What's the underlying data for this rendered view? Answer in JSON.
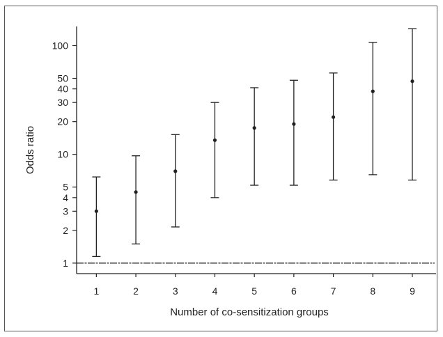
{
  "chart_data": {
    "type": "scatter",
    "xlabel": "Number of co-sensitization groups",
    "ylabel": "Odds ratio",
    "y_scale": "log",
    "ylim": [
      0.8,
      150
    ],
    "xlim": [
      0.5,
      9.6
    ],
    "x_ticks": [
      "1",
      "2",
      "3",
      "4",
      "5",
      "6",
      "7",
      "8",
      "9"
    ],
    "y_ticks": [
      {
        "value": 1,
        "label": "1"
      },
      {
        "value": 2,
        "label": "2"
      },
      {
        "value": 3,
        "label": "3"
      },
      {
        "value": 4,
        "label": "4"
      },
      {
        "value": 5,
        "label": "5"
      },
      {
        "value": 10,
        "label": "10"
      },
      {
        "value": 20,
        "label": "20"
      },
      {
        "value": 30,
        "label": "30"
      },
      {
        "value": 40,
        "label": "40"
      },
      {
        "value": 50,
        "label": "50"
      },
      {
        "value": 100,
        "label": "100"
      }
    ],
    "reference_line": 1,
    "grid": false,
    "points": [
      {
        "x": 1,
        "or": 3.0,
        "lower": 1.15,
        "upper": 6.2
      },
      {
        "x": 2,
        "or": 4.5,
        "lower": 1.5,
        "upper": 9.7
      },
      {
        "x": 3,
        "or": 7.0,
        "lower": 2.15,
        "upper": 15.2
      },
      {
        "x": 4,
        "or": 13.5,
        "lower": 4.0,
        "upper": 30.0
      },
      {
        "x": 5,
        "or": 17.5,
        "lower": 5.2,
        "upper": 41.0
      },
      {
        "x": 6,
        "or": 19.0,
        "lower": 5.2,
        "upper": 48.0
      },
      {
        "x": 7,
        "or": 22.0,
        "lower": 5.8,
        "upper": 56.0
      },
      {
        "x": 8,
        "or": 38.0,
        "lower": 6.5,
        "upper": 107.0
      },
      {
        "x": 9,
        "or": 47.0,
        "lower": 5.8,
        "upper": 143.0
      }
    ]
  }
}
